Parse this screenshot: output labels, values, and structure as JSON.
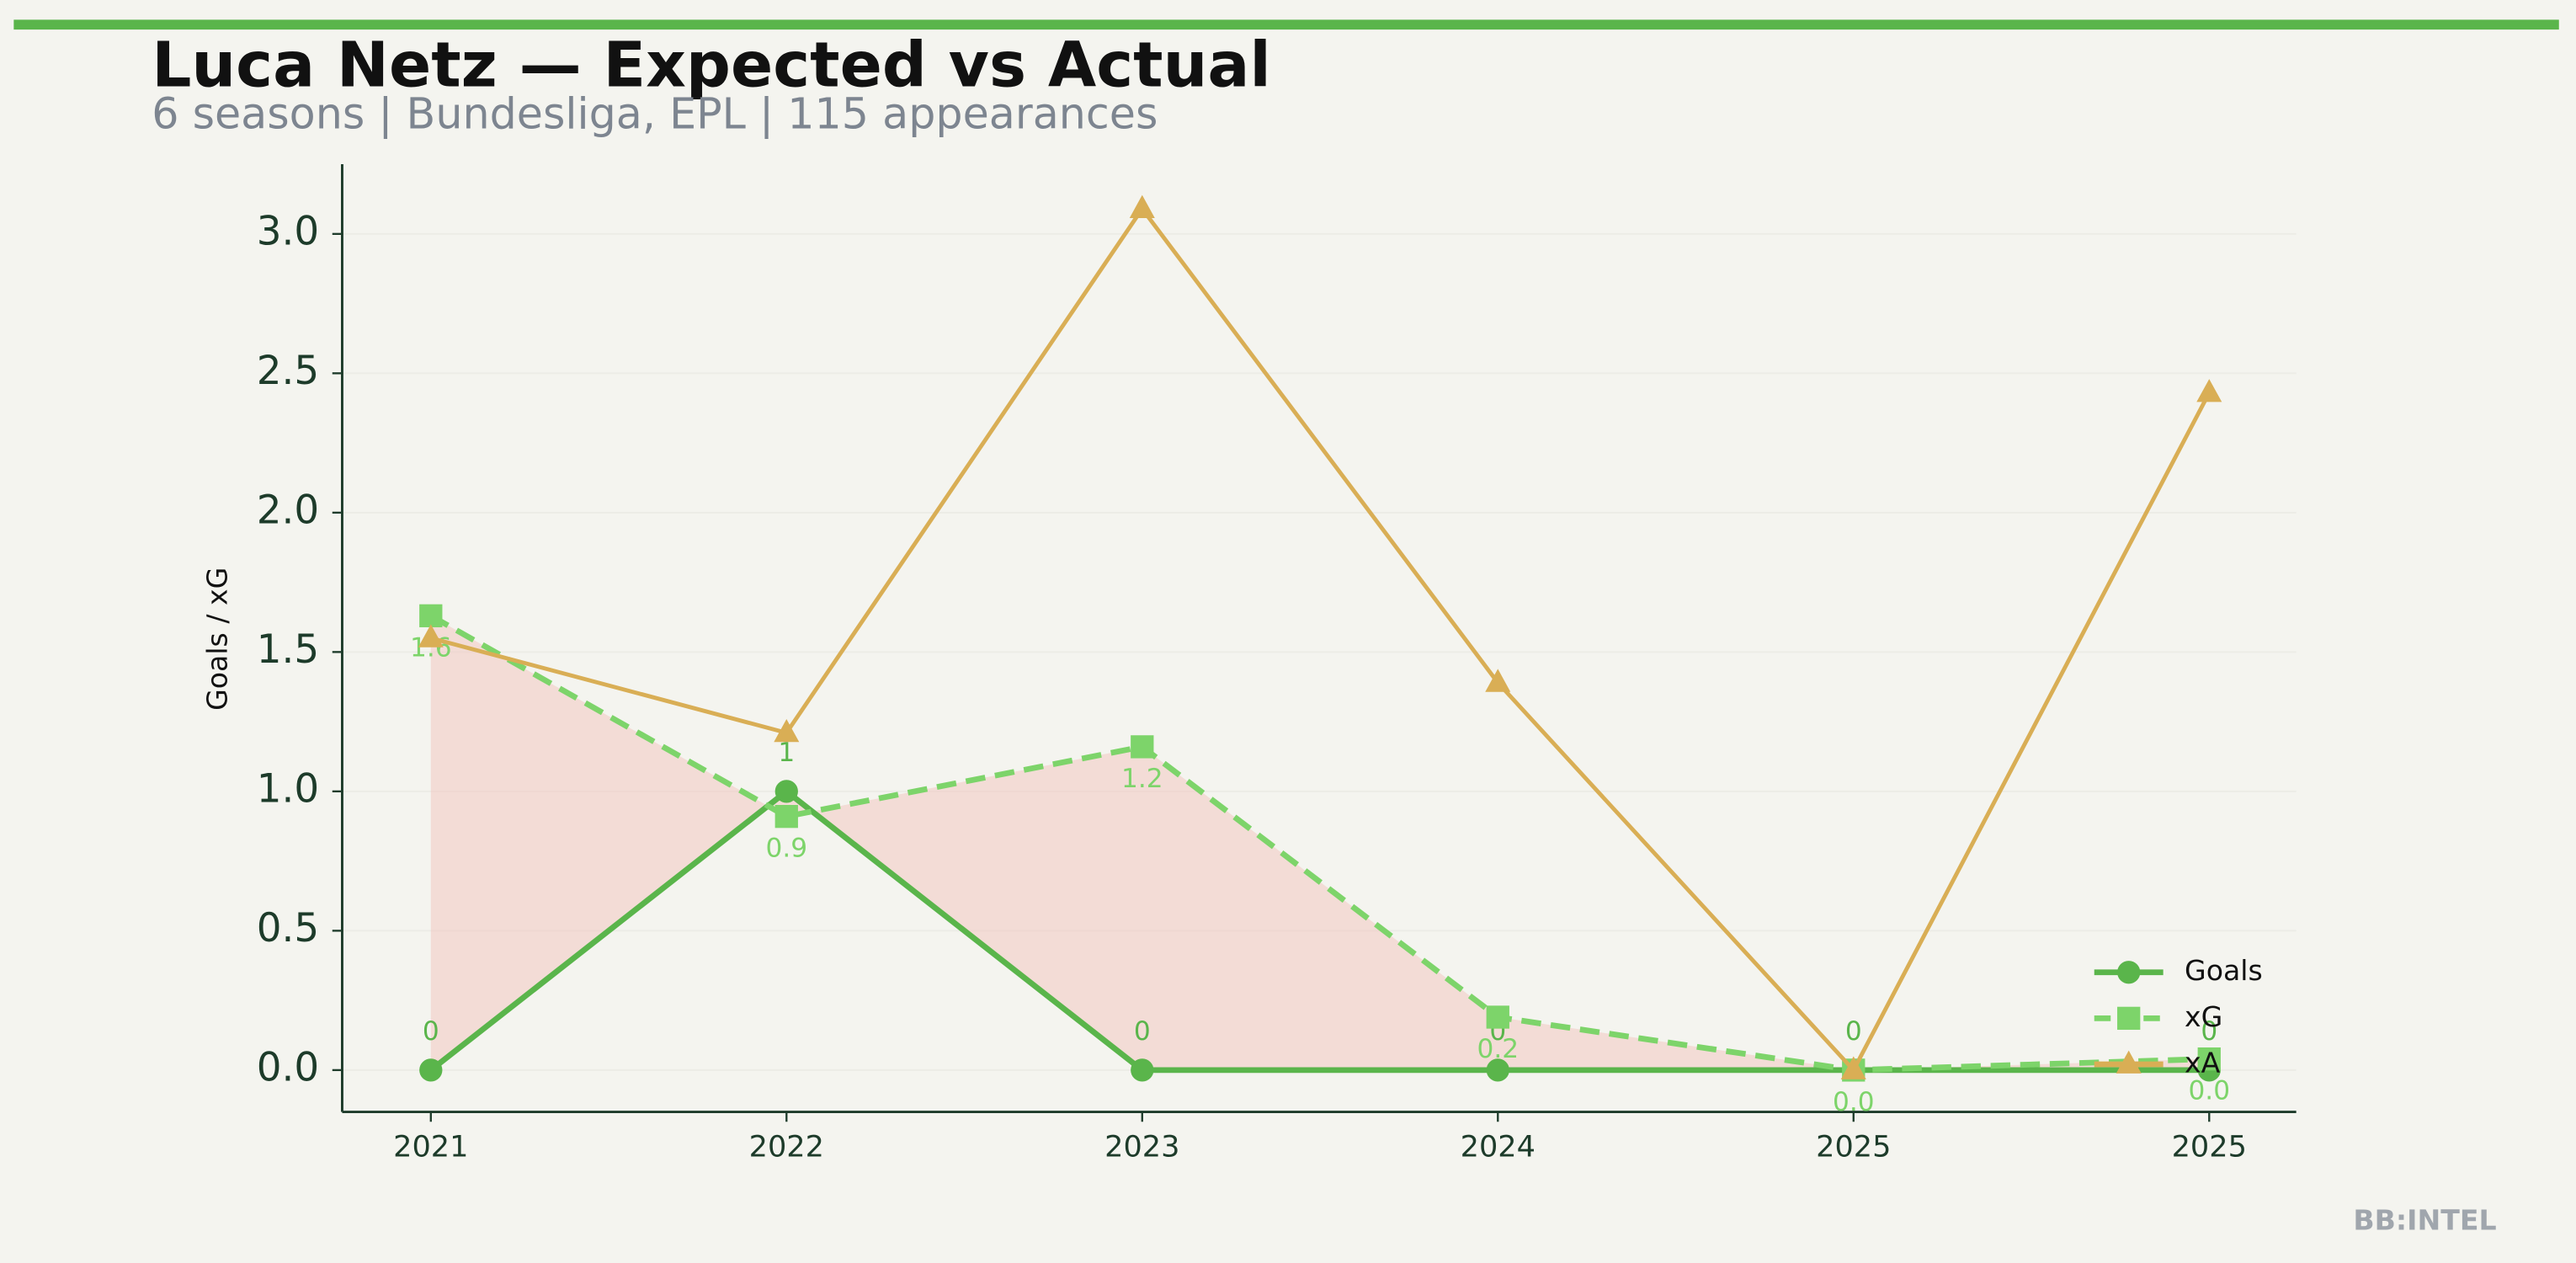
{
  "chart_data": {
    "type": "line",
    "title": "Luca Netz — Expected vs Actual",
    "subtitle": "6 seasons | Bundesliga, EPL | 115 appearances",
    "y_label": "Goals / xG",
    "watermark": "BB:INTEL",
    "categories": [
      "2021",
      "2022",
      "2023",
      "2024",
      "2025",
      "2025"
    ],
    "series": [
      {
        "name": "Goals",
        "color": "#5ab54b",
        "marker": "circle",
        "dash": false,
        "values": [
          0,
          1,
          0,
          0,
          0,
          0
        ],
        "value_labels": [
          "0",
          "1",
          "0",
          "0",
          "0",
          "0"
        ]
      },
      {
        "name": "xG",
        "color": "#7dd46a",
        "marker": "square",
        "dash": true,
        "values": [
          1.63,
          0.91,
          1.16,
          0.19,
          0.0,
          0.04
        ],
        "value_labels": [
          "1.6",
          "0.9",
          "1.2",
          "0.2",
          "0.0",
          "0.0"
        ]
      },
      {
        "name": "xA",
        "color": "#d9ae55",
        "marker": "triangle",
        "dash": false,
        "values": [
          1.55,
          1.21,
          3.09,
          1.39,
          0.0,
          2.43
        ]
      }
    ],
    "fill_color": "#f2c4bd",
    "ylim": [
      -0.15,
      3.25
    ],
    "yticks": [
      {
        "value": 0,
        "label": "0.0"
      },
      {
        "value": 0.5,
        "label": "0.5"
      },
      {
        "value": 1,
        "label": "1.0"
      },
      {
        "value": 1.5,
        "label": "1.5"
      },
      {
        "value": 2,
        "label": "2.0"
      },
      {
        "value": 2.5,
        "label": "2.5"
      },
      {
        "value": 3,
        "label": "3.0"
      }
    ],
    "legend": "lower right"
  }
}
